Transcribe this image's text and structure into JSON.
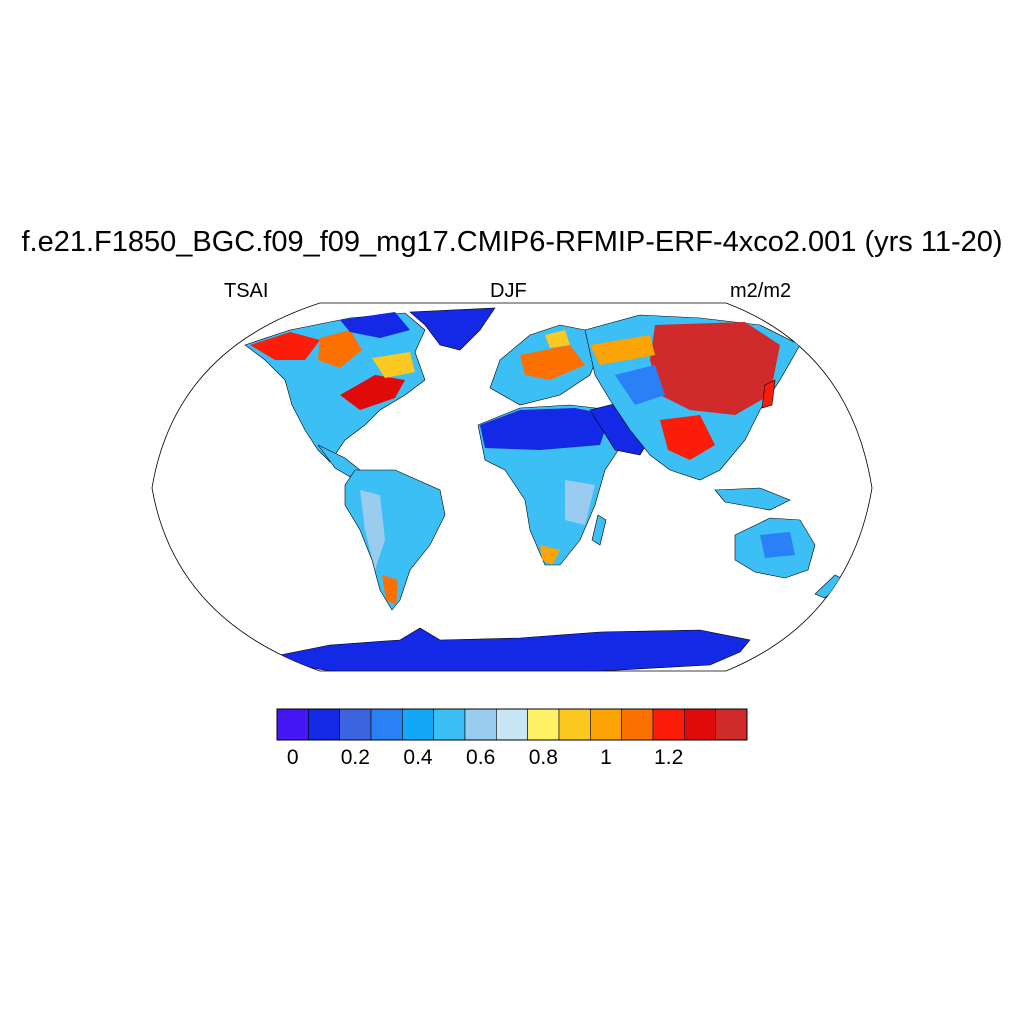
{
  "figure": {
    "title": "f.e21.F1850_BGC.f09_f09_mg17.CMIP6-RFMIP-ERF-4xco2.001 (yrs 11-20)",
    "left_label": "TSAI",
    "center_label": "DJF",
    "right_label": "m2/m2"
  },
  "colorbar": {
    "colors": [
      "#4616f5",
      "#1429e6",
      "#3c64e0",
      "#2a80f5",
      "#12a8f7",
      "#3cbff4",
      "#99ccee",
      "#c9e6f6",
      "#fff166",
      "#fcc822",
      "#fca405",
      "#fc7000",
      "#fc1c0a",
      "#e00a0a",
      "#d02a2a"
    ],
    "tick_labels": [
      "0",
      "0.2",
      "0.4",
      "0.6",
      "0.8",
      "1",
      "1.2"
    ],
    "tick_values": [
      0,
      0.2,
      0.4,
      0.6,
      0.8,
      1,
      1.2
    ],
    "levels": [
      -0.05,
      0.05,
      0.15,
      0.25,
      0.35,
      0.45,
      0.55,
      0.65,
      0.75,
      0.85,
      0.95,
      1.05,
      1.15,
      1.25,
      1.35,
      1.45
    ]
  },
  "map": {
    "projection": "Robinson",
    "ocean_color": "#ffffff",
    "season": "DJF"
  }
}
